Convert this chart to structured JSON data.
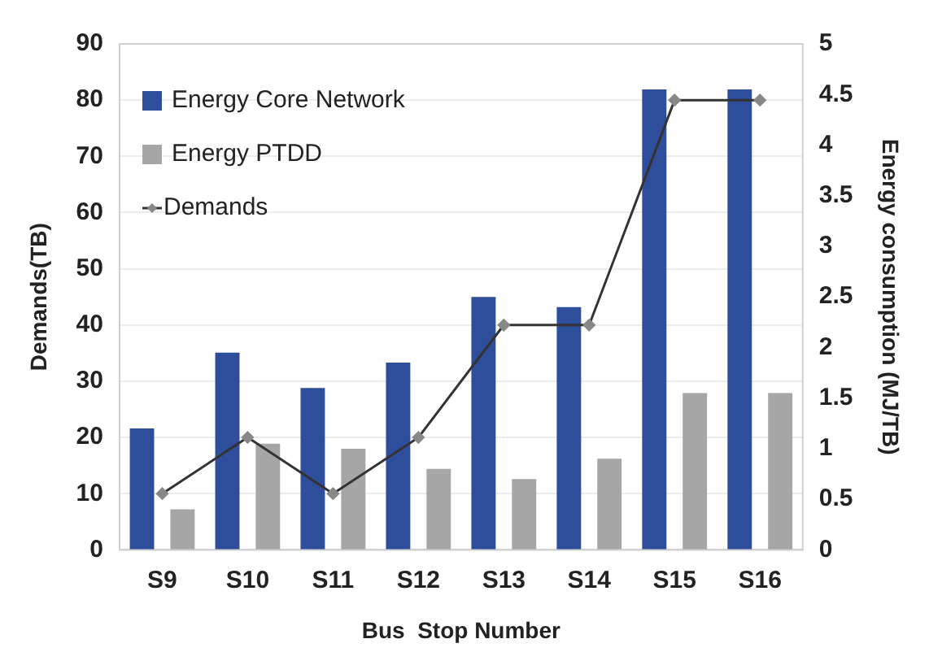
{
  "chart_data": {
    "type": "bar",
    "xlabel": "Bus  Stop Number",
    "ylabel": "Demands(TB)",
    "y2label": "Energy consumption (MJ/TB)",
    "categories": [
      "S9",
      "S10",
      "S11",
      "S12",
      "S13",
      "S14",
      "S15",
      "S16"
    ],
    "series": [
      {
        "name": "Energy Core Network",
        "color": "#2e4d9a",
        "axis": "y2",
        "values": [
          1.2,
          1.95,
          1.6,
          1.85,
          2.5,
          2.4,
          4.55,
          4.55
        ]
      },
      {
        "name": "Energy PTDD",
        "color": "#a6a6a6",
        "axis": "y2",
        "values": [
          0.4,
          1.05,
          1.0,
          0.8,
          0.7,
          0.9,
          1.55,
          1.55
        ]
      },
      {
        "name": "Demands",
        "type": "line",
        "color": "#333333",
        "axis": "y",
        "values": [
          10,
          20,
          10,
          20,
          40,
          40,
          80,
          80
        ]
      }
    ],
    "ylim": [
      0,
      90
    ],
    "yticks": [
      0,
      10,
      20,
      30,
      40,
      50,
      60,
      70,
      80,
      90
    ],
    "y2lim": [
      0,
      5
    ],
    "y2ticks": [
      0,
      0.5,
      1,
      1.5,
      2,
      2.5,
      3,
      3.5,
      4,
      4.5,
      5
    ],
    "grid": "y",
    "legend": "top left",
    "marker": "diamond",
    "line_style": "solid"
  }
}
